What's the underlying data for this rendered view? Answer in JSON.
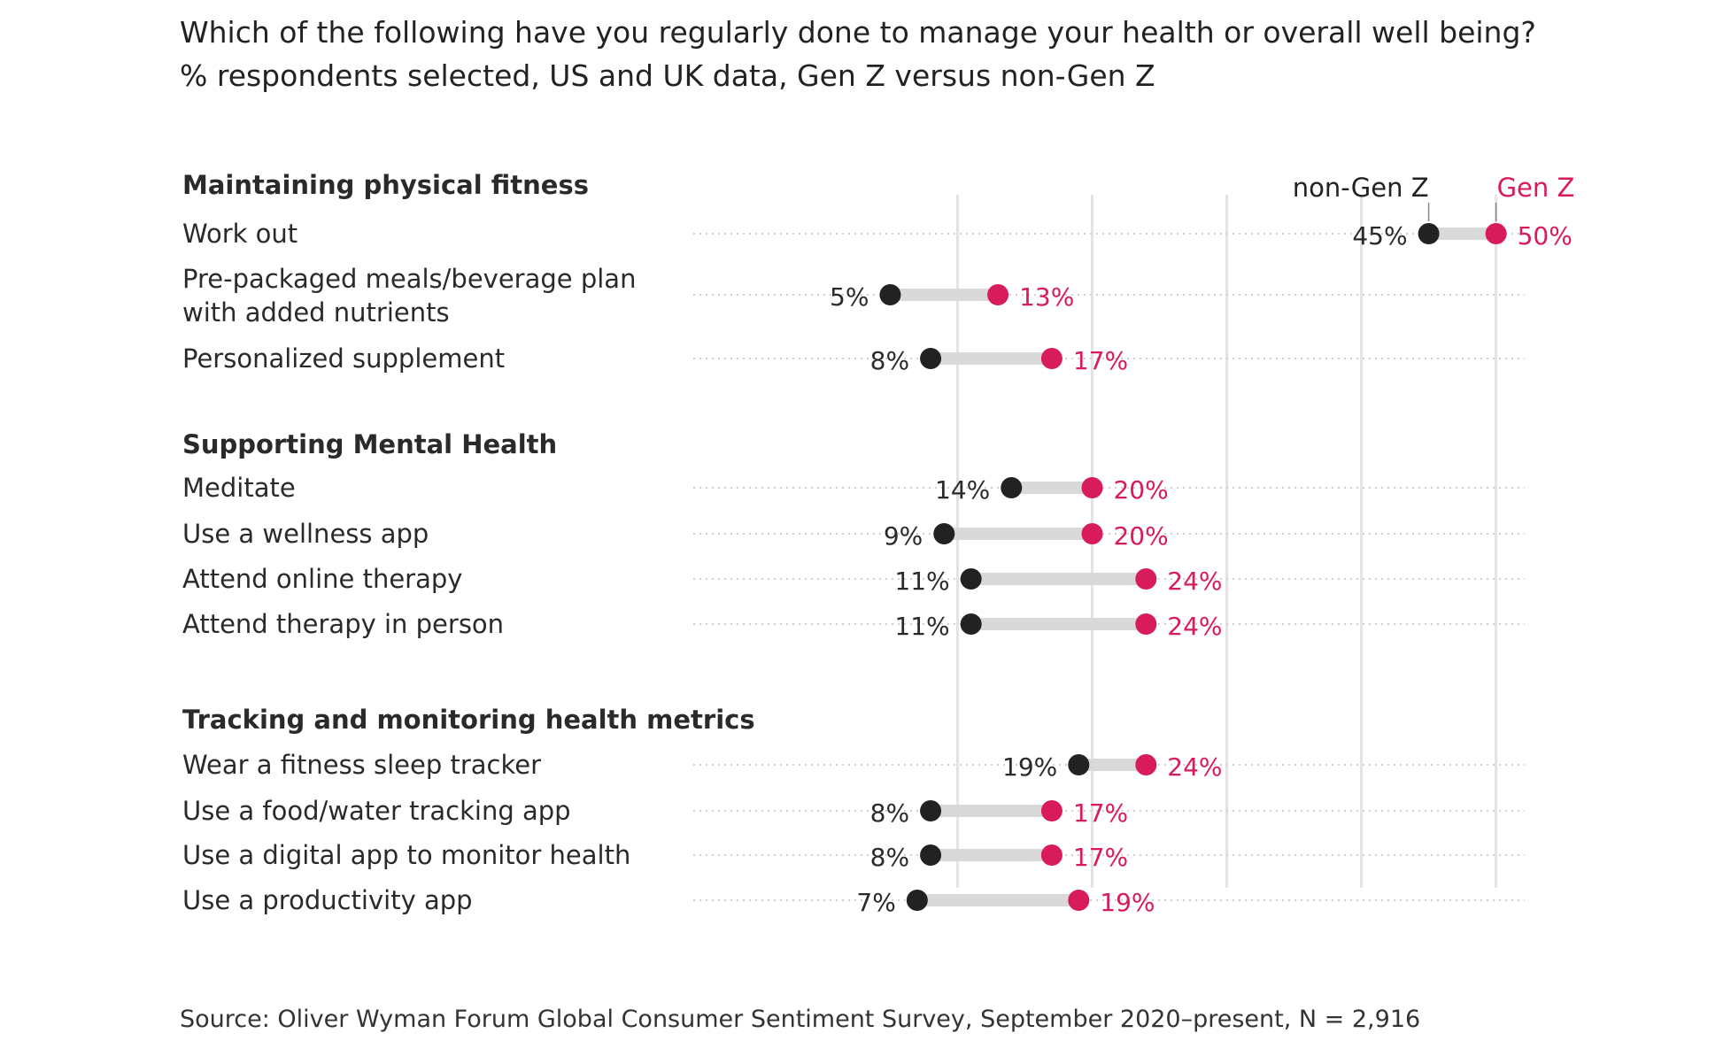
{
  "title": "Which of the following have you regularly done to manage your health or overall well being?",
  "subtitle": "% respondents selected, US and UK data, Gen Z versus non-Gen Z",
  "source": "Source: Oliver Wyman Forum Global Consumer Sentiment Survey, September 2020–present, N = 2,916",
  "colors": {
    "non_gen_z": "#222222",
    "gen_z": "#d81b5a",
    "connector": "#d9d9d9",
    "gridline": "#e3e3e3",
    "dotted_guide": "#d0d0d0"
  },
  "chart_data": {
    "type": "dumbbell",
    "x_range": [
      -9.5,
      52
    ],
    "gridlines": [
      10,
      20,
      30,
      40,
      50
    ],
    "legend": [
      {
        "name": "non-Gen Z",
        "color": "#222222"
      },
      {
        "name": "Gen Z",
        "color": "#d81b5a"
      }
    ],
    "groups": [
      {
        "name": "Maintaining physical fitness",
        "items": [
          {
            "label": [
              "Work out"
            ],
            "non_gen_z": 45,
            "gen_z": 50,
            "non_gen_z_label": "45%",
            "gen_z_label": "50%"
          },
          {
            "label": [
              "Pre-packaged meals/beverage plan",
              "with added nutrients"
            ],
            "non_gen_z": 5,
            "gen_z": 13,
            "non_gen_z_label": "5%",
            "gen_z_label": "13%"
          },
          {
            "label": [
              "Personalized supplement"
            ],
            "non_gen_z": 8,
            "gen_z": 17,
            "non_gen_z_label": "8%",
            "gen_z_label": "17%"
          }
        ]
      },
      {
        "name": "Supporting Mental Health",
        "items": [
          {
            "label": [
              "Meditate"
            ],
            "non_gen_z": 14,
            "gen_z": 20,
            "non_gen_z_label": "14%",
            "gen_z_label": "20%"
          },
          {
            "label": [
              "Use a wellness app"
            ],
            "non_gen_z": 9,
            "gen_z": 20,
            "non_gen_z_label": "9%",
            "gen_z_label": "20%"
          },
          {
            "label": [
              "Attend online therapy"
            ],
            "non_gen_z": 11,
            "gen_z": 24,
            "non_gen_z_label": "11%",
            "gen_z_label": "24%"
          },
          {
            "label": [
              "Attend therapy in person"
            ],
            "non_gen_z": 11,
            "gen_z": 24,
            "non_gen_z_label": "11%",
            "gen_z_label": "24%"
          }
        ]
      },
      {
        "name": "Tracking and monitoring health metrics",
        "items": [
          {
            "label": [
              "Wear a fitness sleep tracker"
            ],
            "non_gen_z": 19,
            "gen_z": 24,
            "non_gen_z_label": "19%",
            "gen_z_label": "24%"
          },
          {
            "label": [
              "Use a food/water tracking app"
            ],
            "non_gen_z": 8,
            "gen_z": 17,
            "non_gen_z_label": "8%",
            "gen_z_label": "17%"
          },
          {
            "label": [
              "Use a digital app to monitor health"
            ],
            "non_gen_z": 8,
            "gen_z": 17,
            "non_gen_z_label": "8%",
            "gen_z_label": "17%"
          },
          {
            "label": [
              "Use a productivity app"
            ],
            "non_gen_z": 7,
            "gen_z": 19,
            "non_gen_z_label": "7%",
            "gen_z_label": "19%"
          }
        ]
      }
    ]
  }
}
